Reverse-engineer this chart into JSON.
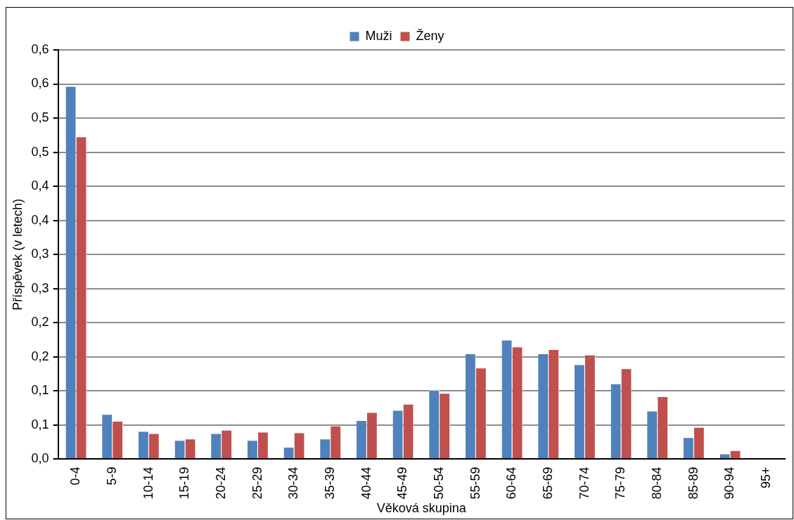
{
  "chart_data": {
    "type": "bar",
    "xlabel": "Věková skupina",
    "ylabel": "Příspěvek (v letech)",
    "categories": [
      "0-4",
      "5-9",
      "10-14",
      "15-19",
      "20-24",
      "25-29",
      "30-34",
      "35-39",
      "40-44",
      "45-49",
      "50-54",
      "55-59",
      "60-64",
      "65-69",
      "70-74",
      "75-79",
      "80-84",
      "85-89",
      "90-94",
      "95+"
    ],
    "series": [
      {
        "name": "Muži",
        "color": "#4f81bd",
        "values": [
          0.547,
          0.066,
          0.041,
          0.028,
          0.038,
          0.028,
          0.018,
          0.03,
          0.057,
          0.072,
          0.101,
          0.155,
          0.175,
          0.155,
          0.139,
          0.111,
          0.071,
          0.032,
          0.008,
          0
        ]
      },
      {
        "name": "Ženy",
        "color": "#c0504d",
        "values": [
          0.473,
          0.056,
          0.038,
          0.03,
          0.043,
          0.04,
          0.039,
          0.049,
          0.069,
          0.081,
          0.097,
          0.134,
          0.165,
          0.161,
          0.153,
          0.133,
          0.092,
          0.047,
          0.013,
          0
        ]
      }
    ],
    "ylim": [
      0,
      0.6
    ],
    "yticks": [
      {
        "value": 0,
        "label": "0,0"
      },
      {
        "value": 0.05,
        "label": "0,1"
      },
      {
        "value": 0.1,
        "label": "0,1"
      },
      {
        "value": 0.15,
        "label": "0,2"
      },
      {
        "value": 0.2,
        "label": "0,2"
      },
      {
        "value": 0.25,
        "label": "0,3"
      },
      {
        "value": 0.3,
        "label": "0,3"
      },
      {
        "value": 0.35,
        "label": "0,4"
      },
      {
        "value": 0.4,
        "label": "0,4"
      },
      {
        "value": 0.45,
        "label": "0,5"
      },
      {
        "value": 0.5,
        "label": "0,5"
      },
      {
        "value": 0.55,
        "label": "0,6"
      },
      {
        "value": 0.6,
        "label": "0,6"
      }
    ],
    "grid": "y",
    "legend": "top"
  }
}
